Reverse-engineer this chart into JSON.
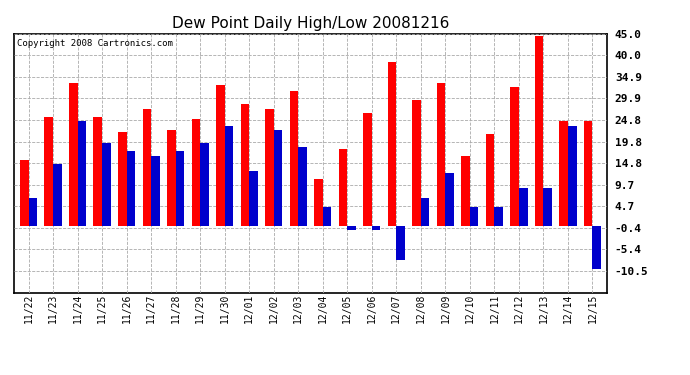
{
  "title": "Dew Point Daily High/Low 20081216",
  "copyright": "Copyright 2008 Cartronics.com",
  "categories": [
    "11/22",
    "11/23",
    "11/24",
    "11/25",
    "11/26",
    "11/27",
    "11/28",
    "11/29",
    "11/30",
    "12/01",
    "12/02",
    "12/03",
    "12/04",
    "12/05",
    "12/06",
    "12/07",
    "12/08",
    "12/09",
    "12/10",
    "12/11",
    "12/12",
    "12/13",
    "12/14",
    "12/15"
  ],
  "highs": [
    15.5,
    25.5,
    33.5,
    25.5,
    22.0,
    27.5,
    22.5,
    25.0,
    33.0,
    28.5,
    27.5,
    31.5,
    11.0,
    18.0,
    26.5,
    38.5,
    29.5,
    33.5,
    16.5,
    21.5,
    32.5,
    44.5,
    24.5,
    24.5
  ],
  "lows": [
    6.5,
    14.5,
    24.5,
    19.5,
    17.5,
    16.5,
    17.5,
    19.5,
    23.5,
    13.0,
    22.5,
    18.5,
    4.5,
    -1.0,
    -1.0,
    -8.0,
    6.5,
    12.5,
    4.5,
    4.5,
    9.0,
    9.0,
    23.5,
    -10.0
  ],
  "high_color": "#ff0000",
  "low_color": "#0000cc",
  "bg_color": "#ffffff",
  "plot_bg_color": "#ffffff",
  "grid_color": "#aaaaaa",
  "ylim": [
    -15.5,
    45.0
  ],
  "yticks": [
    -10.5,
    -5.4,
    -0.4,
    4.7,
    9.7,
    14.8,
    19.8,
    24.8,
    29.9,
    34.9,
    40.0,
    45.0
  ],
  "title_fontsize": 11,
  "copyright_fontsize": 6.5,
  "tick_fontsize": 7,
  "ytick_fontsize": 8
}
